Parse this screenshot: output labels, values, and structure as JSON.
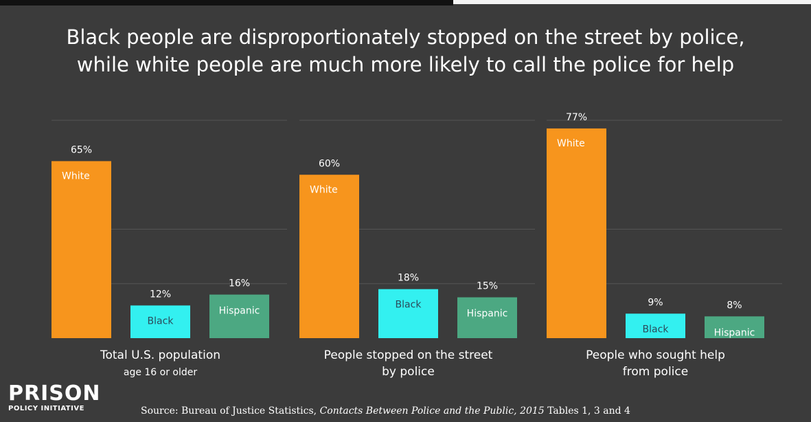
{
  "title": {
    "line1": "Black people are disproportionately stopped on the street by police,",
    "line2": "while white people are much more likely to call the police for help"
  },
  "colors": {
    "background": "#3b3b3b",
    "White": "#f7951d",
    "Black": "#33f0f0",
    "Hispanic": "#4ca882",
    "gridline": "#555555"
  },
  "chart_data": {
    "type": "bar",
    "title": "Black people are disproportionately stopped on the street by police, while white people are much more likely to call the police for help",
    "series_names": [
      "White",
      "Black",
      "Hispanic"
    ],
    "groups": [
      {
        "label_lines": [
          "Total U.S. population",
          "age 16 or older"
        ],
        "bars": [
          {
            "name": "White",
            "value": 65,
            "value_label": "65%"
          },
          {
            "name": "Black",
            "value": 12,
            "value_label": "12%"
          },
          {
            "name": "Hispanic",
            "value": 16,
            "value_label": "16%"
          }
        ]
      },
      {
        "label_lines": [
          "People stopped on the street",
          "by police"
        ],
        "bars": [
          {
            "name": "White",
            "value": 60,
            "value_label": "60%"
          },
          {
            "name": "Black",
            "value": 18,
            "value_label": "18%"
          },
          {
            "name": "Hispanic",
            "value": 15,
            "value_label": "15%"
          }
        ]
      },
      {
        "label_lines": [
          "People who sought help",
          "from police"
        ],
        "bars": [
          {
            "name": "White",
            "value": 77,
            "value_label": "77%"
          },
          {
            "name": "Black",
            "value": 9,
            "value_label": "9%"
          },
          {
            "name": "Hispanic",
            "value": 8,
            "value_label": "8%"
          }
        ]
      }
    ],
    "ylim": [
      0,
      80
    ],
    "grid": true,
    "legend": "none (labels inside bars)"
  },
  "logo": {
    "line1": "PRISON",
    "line2": "POLICY INITIATIVE"
  },
  "source": {
    "prefix": "Source: Bureau of Justice Statistics, ",
    "italic": "Contacts Between Police and the Public, 2015",
    "suffix": "  Tables 1, 3 and 4"
  }
}
